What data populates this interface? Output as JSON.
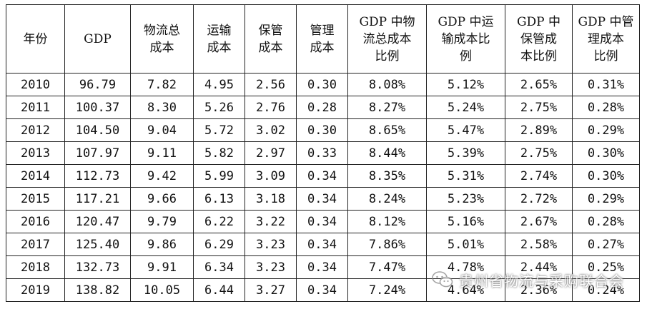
{
  "headers": [
    "年份",
    "GDP",
    "物流总\n成本",
    "运输\n成本",
    "保管\n成本",
    "管理\n成本",
    "GDP 中物\n流总成本\n比例",
    "GDP 中运\n输成本比\n例",
    "GDP 中\n保管成\n本比例",
    "GDP 中管\n理成本\n比例"
  ],
  "rows": [
    [
      "2010",
      "96.79",
      "7.82",
      "4.95",
      "2.56",
      "0.30",
      "8.08%",
      "5.12%",
      "2.65%",
      "0.31%"
    ],
    [
      "2011",
      "100.37",
      "8.30",
      "5.26",
      "2.76",
      "0.28",
      "8.27%",
      "5.24%",
      "2.75%",
      "0.28%"
    ],
    [
      "2012",
      "104.50",
      "9.04",
      "5.72",
      "3.02",
      "0.30",
      "8.65%",
      "5.47%",
      "2.89%",
      "0.29%"
    ],
    [
      "2013",
      "107.97",
      "9.11",
      "5.82",
      "2.97",
      "0.33",
      "8.44%",
      "5.39%",
      "2.75%",
      "0.30%"
    ],
    [
      "2014",
      "112.73",
      "9.42",
      "5.99",
      "3.09",
      "0.34",
      "8.35%",
      "5.31%",
      "2.74%",
      "0.30%"
    ],
    [
      "2015",
      "117.21",
      "9.66",
      "6.13",
      "3.18",
      "0.34",
      "8.24%",
      "5.23%",
      "2.72%",
      "0.29%"
    ],
    [
      "2016",
      "120.47",
      "9.79",
      "6.22",
      "3.22",
      "0.34",
      "8.12%",
      "5.16%",
      "2.67%",
      "0.28%"
    ],
    [
      "2017",
      "125.40",
      "9.86",
      "6.29",
      "3.23",
      "0.34",
      "7.86%",
      "5.01%",
      "2.58%",
      "0.27%"
    ],
    [
      "2018",
      "132.73",
      "9.91",
      "6.34",
      "3.23",
      "0.34",
      "7.47%",
      "4.78%",
      "2.44%",
      "0.25%"
    ],
    [
      "2019",
      "138.82",
      "10.05",
      "6.44",
      "3.27",
      "0.34",
      "7.24%",
      "4.64%",
      "2.36%",
      "0.24%"
    ]
  ],
  "watermark": {
    "text": "贵州省物流与采购联合会",
    "icon": "wechat-icon"
  }
}
